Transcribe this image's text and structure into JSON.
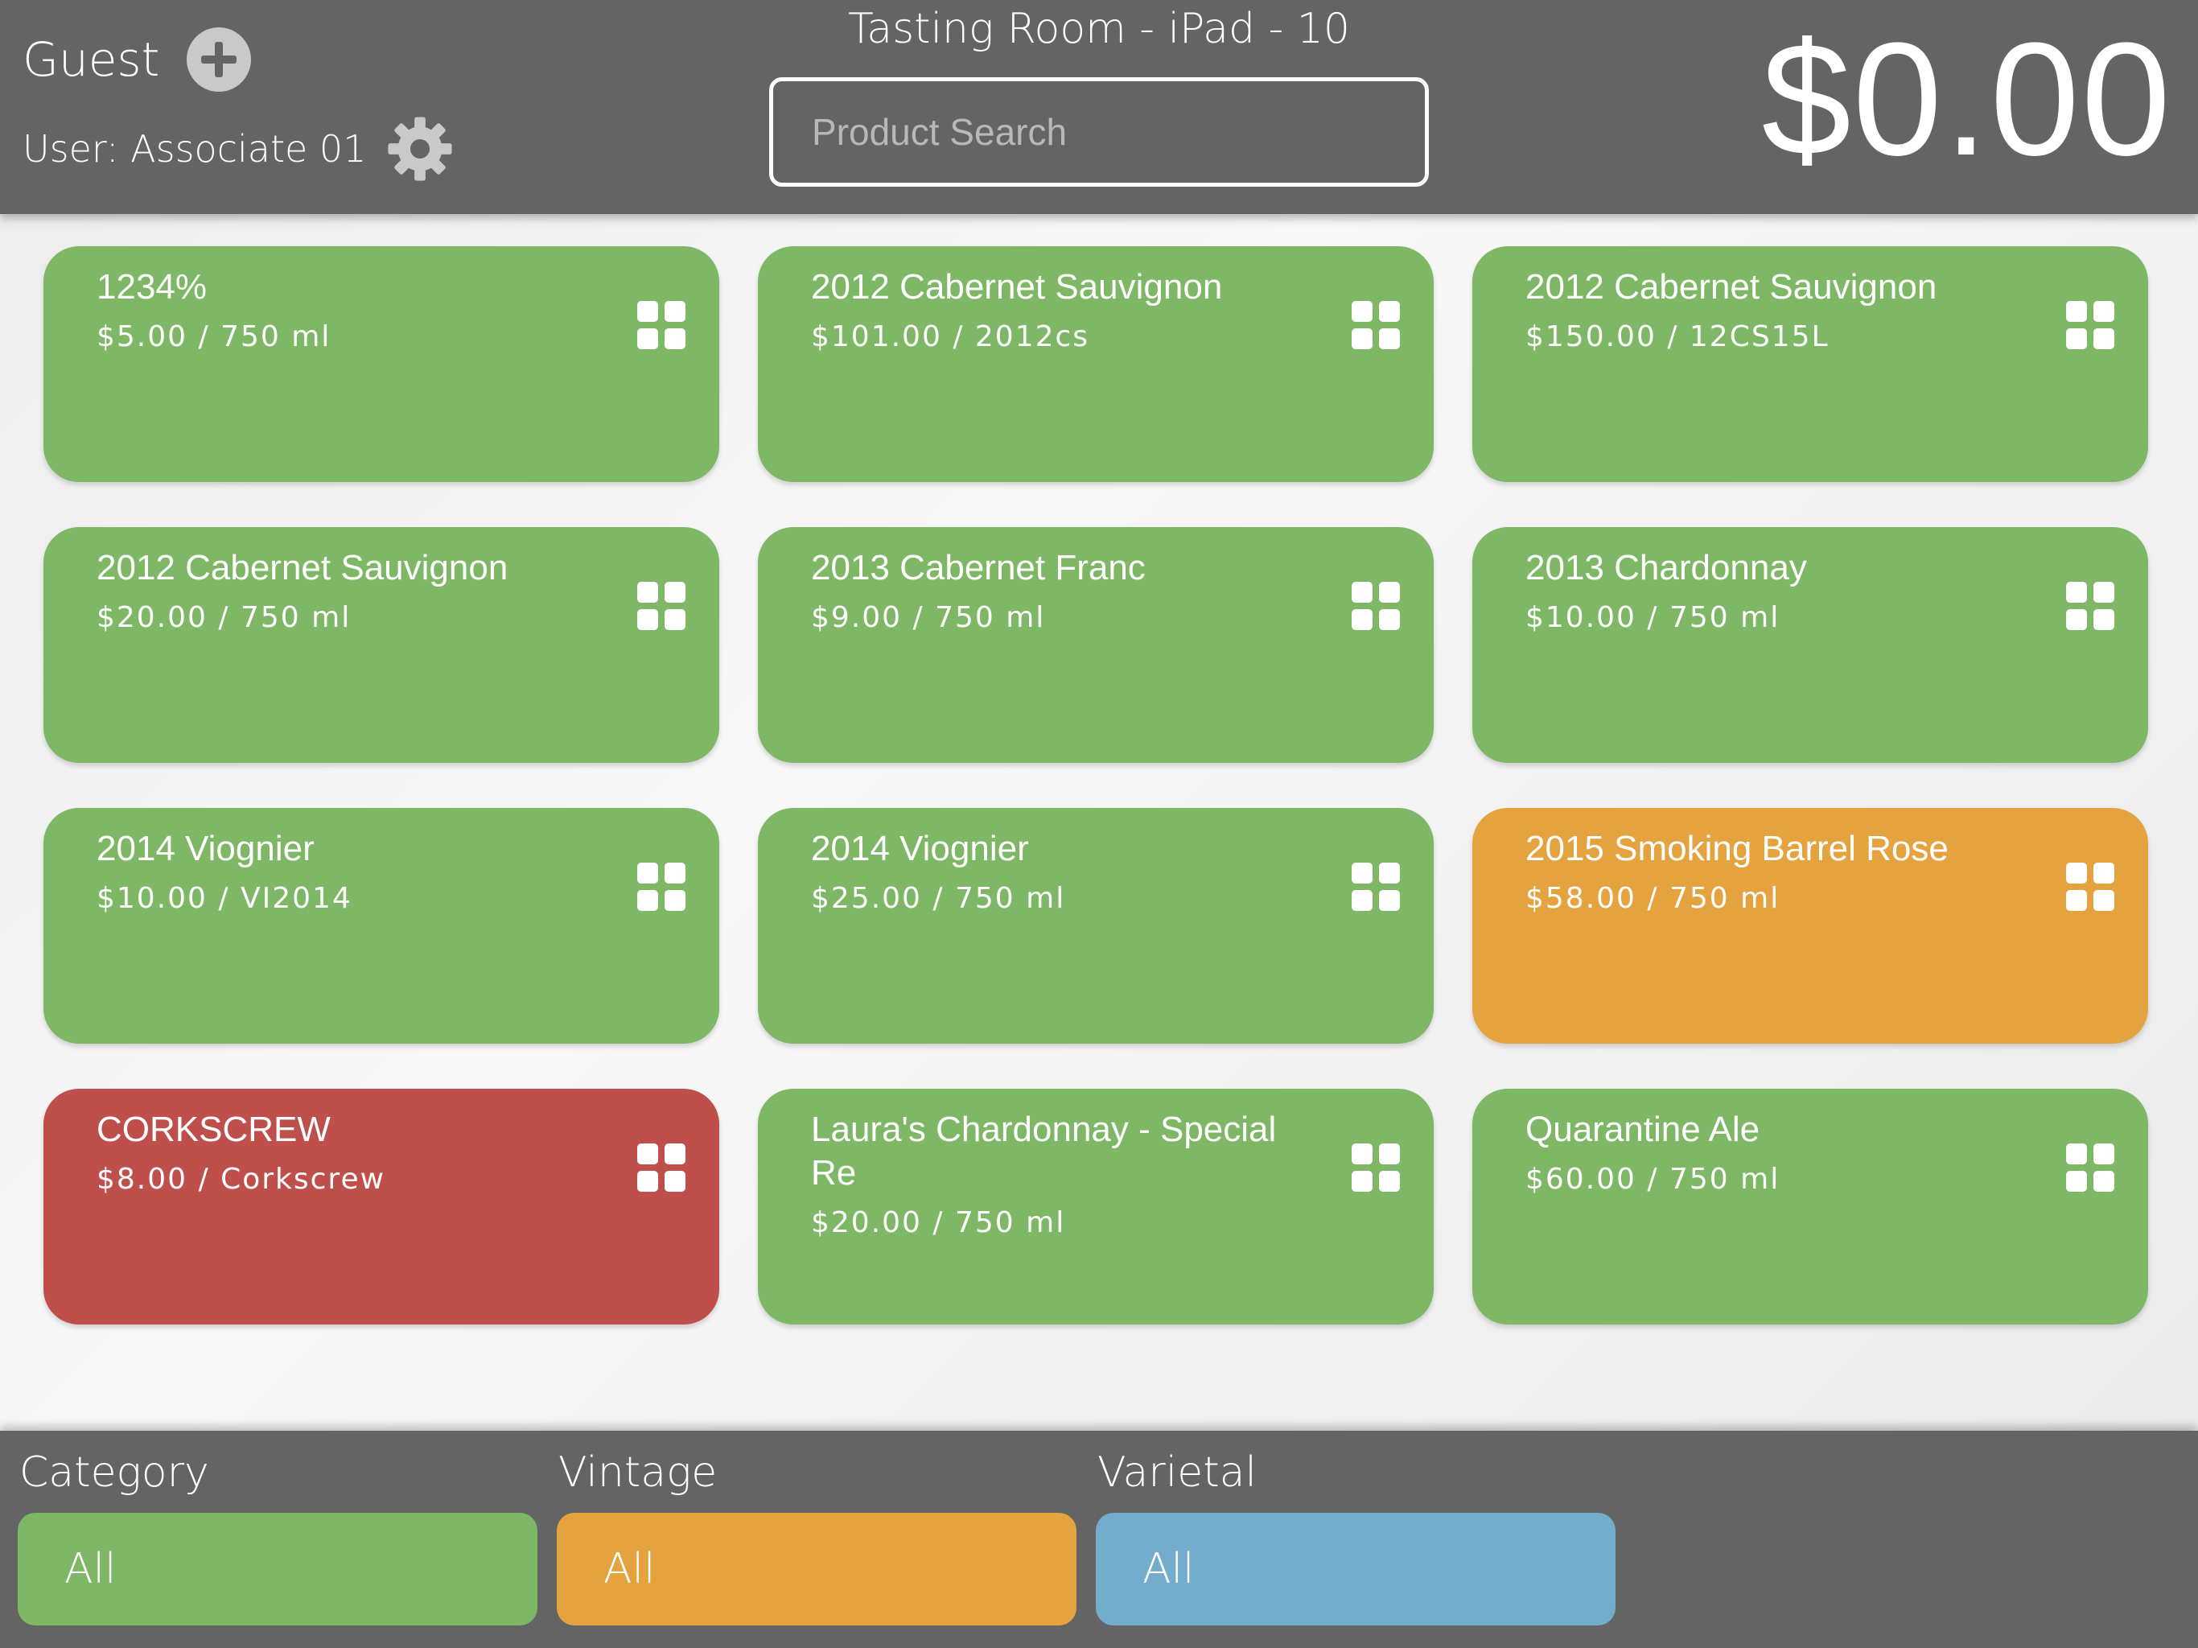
{
  "header": {
    "guest_label": "Guest",
    "user_label": "User: Associate 01",
    "title": "Tasting Room - iPad - 10",
    "search_placeholder": "Product Search",
    "total": "$0.00"
  },
  "products": [
    {
      "name": "1234%",
      "price": "$5.00 / 750 ml",
      "color": "#7eb765"
    },
    {
      "name": "2012 Cabernet Sauvignon",
      "price": "$101.00 / 2012cs",
      "color": "#7eb765"
    },
    {
      "name": "2012 Cabernet Sauvignon",
      "price": "$150.00 / 12CS15L",
      "color": "#7eb765"
    },
    {
      "name": "2012 Cabernet Sauvignon",
      "price": "$20.00 / 750 ml",
      "color": "#7eb765"
    },
    {
      "name": "2013 Cabernet Franc",
      "price": "$9.00 / 750 ml",
      "color": "#7eb765"
    },
    {
      "name": "2013 Chardonnay",
      "price": "$10.00 / 750 ml",
      "color": "#7eb765"
    },
    {
      "name": "2014 Viognier",
      "price": "$10.00 / VI2014",
      "color": "#7eb765"
    },
    {
      "name": "2014 Viognier",
      "price": "$25.00 / 750 ml",
      "color": "#7eb765"
    },
    {
      "name": "2015 Smoking Barrel Rose",
      "price": "$58.00 / 750 ml",
      "color": "#e5a33f"
    },
    {
      "name": "CORKSCREW",
      "price": "$8.00 / Corkscrew",
      "color": "#bf4f4b"
    },
    {
      "name": "Laura's Chardonnay - Special Re",
      "price": "$20.00 / 750 ml",
      "color": "#7eb765"
    },
    {
      "name": "Quarantine Ale",
      "price": "$60.00 / 750 ml",
      "color": "#7eb765"
    }
  ],
  "filters": {
    "category": {
      "label": "Category",
      "value": "All",
      "color": "#7eb765"
    },
    "vintage": {
      "label": "Vintage",
      "value": "All",
      "color": "#e5a33f"
    },
    "varietal": {
      "label": "Varietal",
      "value": "All",
      "color": "#74adcc"
    }
  },
  "icons": {
    "add": "plus-circle-icon",
    "settings": "gear-icon",
    "tile": "grid-icon"
  }
}
